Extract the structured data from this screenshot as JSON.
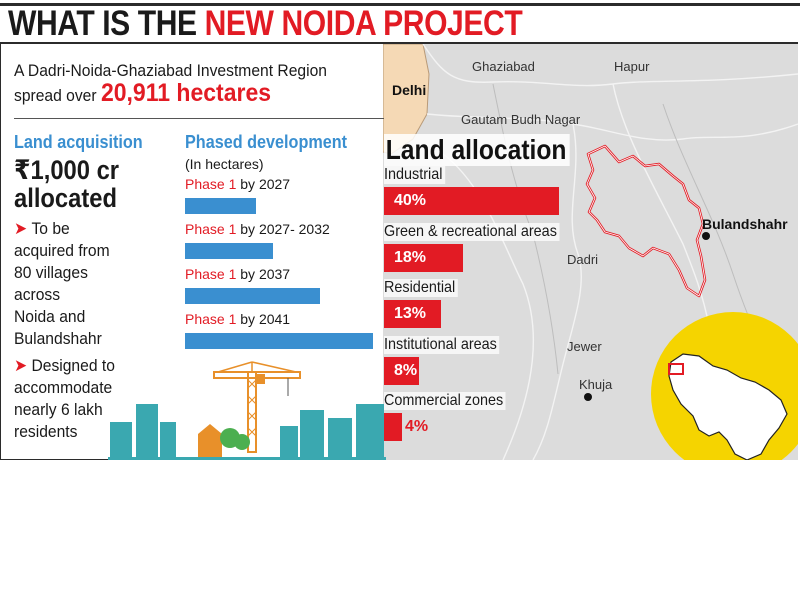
{
  "title": {
    "part1": "WHAT IS THE ",
    "part2": "NEW NOIDA PROJECT"
  },
  "intro": {
    "line1": "A Dadri-Noida-Ghaziabad Investment Region",
    "line2_prefix": "spread over ",
    "area": "20,911 hectares"
  },
  "land_acquisition": {
    "heading": "Land acquisition",
    "amount_line1": "₹1,000 cr",
    "amount_line2": "allocated",
    "bullet1": [
      "To be",
      "acquired from",
      "80 villages",
      "across",
      "Noida and",
      "Bulandshahr"
    ],
    "bullet2": [
      "Designed to",
      "accommodate",
      "nearly 6 lakh",
      "residents"
    ]
  },
  "map_places": {
    "delhi": "Delhi",
    "ghaziabad": "Ghaziabad",
    "hapur": "Hapur",
    "gautam_budh_nagar": "Gautam Budh Nagar",
    "bulandshahr": "Bulandshahr",
    "dadri": "Dadri",
    "jewer": "Jewer",
    "khuja": "Khuja"
  },
  "colors": {
    "accent_red": "#e21b24",
    "accent_blue": "#3a8fd0",
    "map_yellow": "#f5d400"
  },
  "chart_data": [
    {
      "type": "bar",
      "orientation": "horizontal",
      "title": "Phased development",
      "subtitle": "(In hectares)",
      "categories": [
        {
          "phase": "Phase 1",
          "period": " by 2027"
        },
        {
          "phase": "Phase 1",
          "period": " by 2027- 2032"
        },
        {
          "phase": "Phase 1",
          "period": " by 2037"
        },
        {
          "phase": "Phase 1",
          "period": " by 2041"
        }
      ],
      "values": [
        0.38,
        0.47,
        0.72,
        1.0
      ],
      "value_note": "relative bar lengths; no numeric labels printed"
    },
    {
      "type": "bar",
      "orientation": "horizontal",
      "title": "Land allocation",
      "categories": [
        "Industrial",
        "Green & recreational areas",
        "Residential",
        "Institutional areas",
        "Commercial zones"
      ],
      "values": [
        40,
        18,
        13,
        8,
        4
      ],
      "value_labels": [
        "40%",
        "18%",
        "13%",
        "8%",
        "4%"
      ],
      "unit": "%"
    }
  ]
}
